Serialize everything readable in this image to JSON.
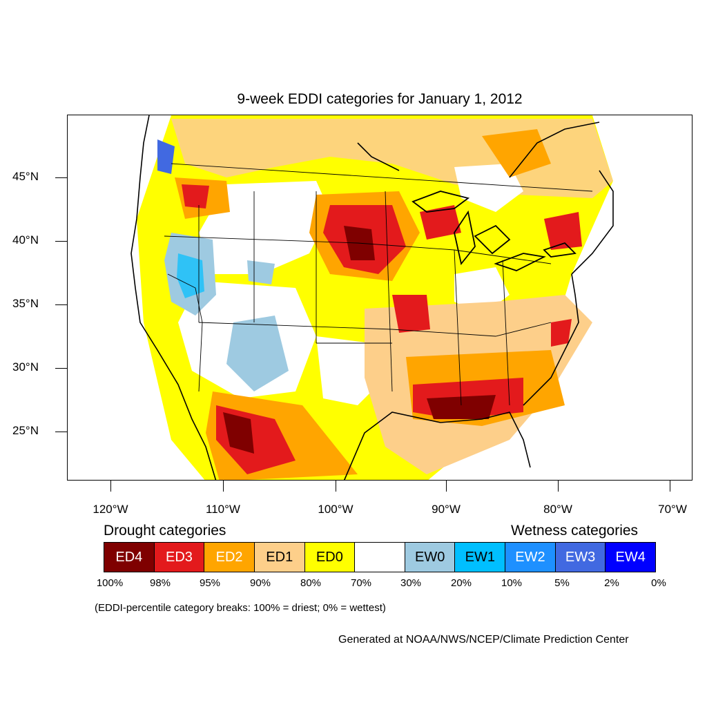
{
  "title": "9-week EDDI categories for January 1, 2012",
  "latitude_labels": [
    "45°N",
    "40°N",
    "35°N",
    "30°N",
    "25°N"
  ],
  "longitude_labels": [
    "120°W",
    "110°W",
    "100°W",
    "90°W",
    "80°W",
    "70°W"
  ],
  "legend": {
    "drought_heading": "Drought categories",
    "wetness_heading": "Wetness categories",
    "categories": [
      {
        "label": "ED4",
        "color": "#7f0000",
        "text_color": "#ffffff"
      },
      {
        "label": "ED3",
        "color": "#e31a1c",
        "text_color": "#ffffff"
      },
      {
        "label": "ED2",
        "color": "#ffa500",
        "text_color": "#ffffff"
      },
      {
        "label": "ED1",
        "color": "#fdcf8a",
        "text_color": "#000000"
      },
      {
        "label": "ED0",
        "color": "#ffff00",
        "text_color": "#000000"
      },
      {
        "label": "",
        "color": "#ffffff",
        "text_color": "#000000"
      },
      {
        "label": "EW0",
        "color": "#9ecae1",
        "text_color": "#000000"
      },
      {
        "label": "EW1",
        "color": "#00bfff",
        "text_color": "#000000"
      },
      {
        "label": "EW2",
        "color": "#1e90ff",
        "text_color": "#ffffff"
      },
      {
        "label": "EW3",
        "color": "#4169e1",
        "text_color": "#ffffff"
      },
      {
        "label": "EW4",
        "color": "#0000ff",
        "text_color": "#ffffff"
      }
    ],
    "breaks": [
      "100%",
      "98%",
      "95%",
      "90%",
      "80%",
      "70%",
      "30%",
      "20%",
      "10%",
      "5%",
      "2%",
      "0%"
    ]
  },
  "note": "(EDDI-percentile category breaks: 100% = driest; 0% = wettest)",
  "credit": "Generated at NOAA/NWS/NCEP/Climate Prediction Center"
}
